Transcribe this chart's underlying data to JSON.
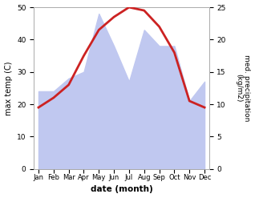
{
  "months": [
    "Jan",
    "Feb",
    "Mar",
    "Apr",
    "May",
    "Jun",
    "Jul",
    "Aug",
    "Sep",
    "Oct",
    "Nov",
    "Dec"
  ],
  "temperature": [
    19,
    22,
    26,
    35,
    43,
    47,
    50,
    49,
    44,
    36,
    21,
    19
  ],
  "precipitation": [
    12,
    12,
    14,
    15,
    24,
    19,
    13.5,
    21.5,
    19,
    19,
    10.5,
    13.5
  ],
  "temp_color": "#cc2222",
  "precip_fill_color": "#c0c8f0",
  "left_ylim": [
    0,
    50
  ],
  "right_ylim": [
    0,
    25
  ],
  "left_yticks": [
    0,
    10,
    20,
    30,
    40,
    50
  ],
  "right_yticks": [
    0,
    5,
    10,
    15,
    20,
    25
  ],
  "xlabel": "date (month)",
  "ylabel_left": "max temp (C)",
  "ylabel_right": "med. precipitation\n(kg/m2)",
  "bg_color": "#ffffff"
}
